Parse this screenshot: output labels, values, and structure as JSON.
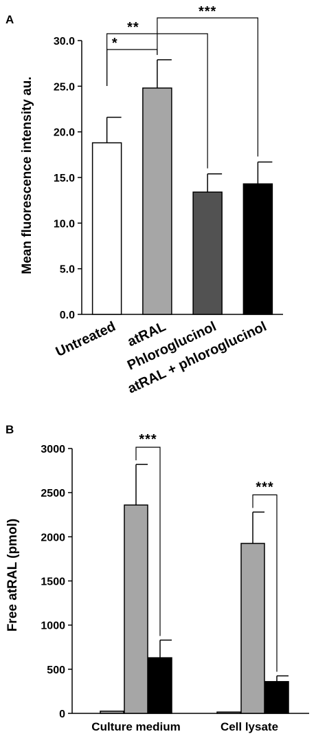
{
  "chart_data": [
    {
      "panel": "A",
      "type": "bar",
      "ylabel": "Mean fluorescence intensity au.",
      "ylim": [
        0,
        30
      ],
      "yticks": [
        "0.0",
        "5.0",
        "10.0",
        "15.0",
        "20.0",
        "25.0",
        "30.0"
      ],
      "categories": [
        "Untreated",
        "atRAL",
        "Phloroglucinol",
        "atRAL + phloroglucinol"
      ],
      "values": [
        18.8,
        24.8,
        13.4,
        14.3
      ],
      "errors": [
        2.8,
        3.1,
        2.0,
        2.4
      ],
      "bar_colors": [
        "#ffffff",
        "#a6a6a6",
        "#525252",
        "#000000"
      ],
      "significance": [
        {
          "from": 0,
          "to": 1,
          "label": "*"
        },
        {
          "from": 0,
          "to": 2,
          "label": "**"
        },
        {
          "from": 1,
          "to": 3,
          "label": "***"
        }
      ]
    },
    {
      "panel": "B",
      "type": "bar",
      "ylabel": "Free atRAL (pmol)",
      "ylim": [
        0,
        3000
      ],
      "yticks": [
        "0",
        "500",
        "1000",
        "1500",
        "2000",
        "2500",
        "3000"
      ],
      "categories": [
        "Culture medium",
        "Cell lysate"
      ],
      "series": [
        {
          "values": [
            25,
            15
          ],
          "errors": [
            0,
            0
          ],
          "color": "#a6a6a6"
        },
        {
          "values": [
            2360,
            1925
          ],
          "errors": [
            460,
            355
          ],
          "color": "#a6a6a6"
        },
        {
          "values": [
            630,
            360
          ],
          "errors": [
            200,
            65
          ],
          "color": "#000000"
        }
      ],
      "significance": [
        {
          "group": 0,
          "from": 1,
          "to": 2,
          "label": "***"
        },
        {
          "group": 1,
          "from": 1,
          "to": 2,
          "label": "***"
        }
      ]
    }
  ]
}
